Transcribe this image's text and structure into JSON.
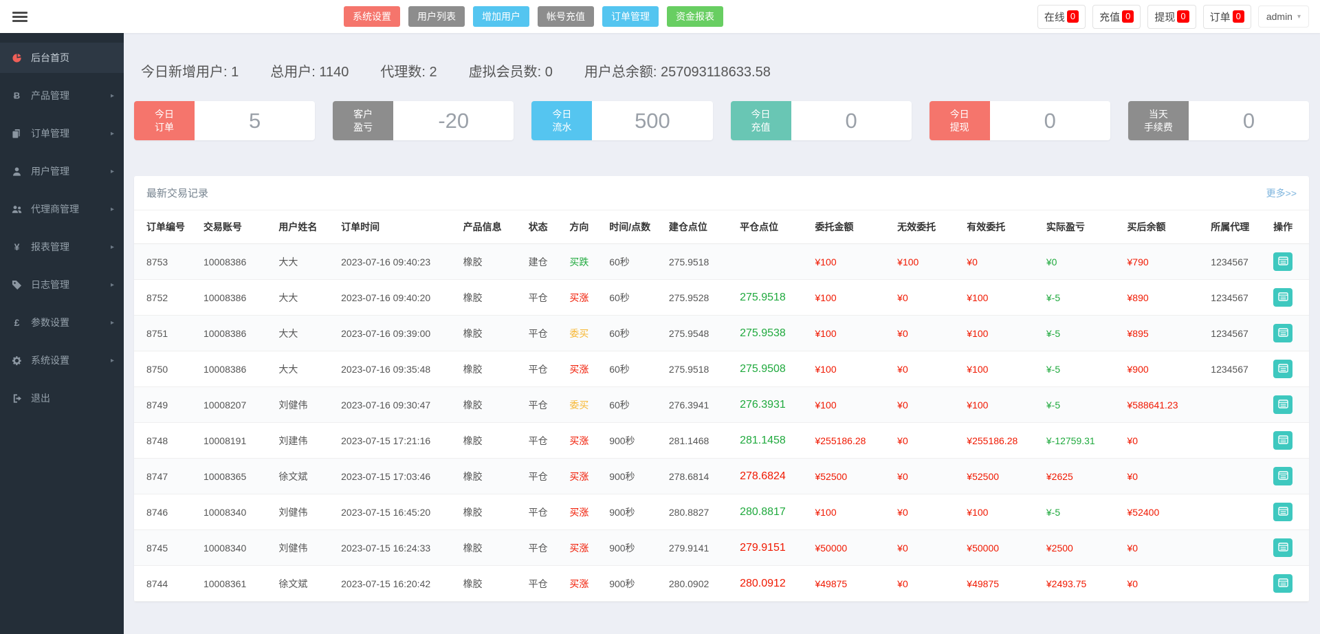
{
  "header": {
    "menu_buttons": [
      {
        "label": "系统设置",
        "color": "red"
      },
      {
        "label": "用户列表",
        "color": "gray"
      },
      {
        "label": "增加用户",
        "color": "blue"
      },
      {
        "label": "帐号充值",
        "color": "gray"
      },
      {
        "label": "订单管理",
        "color": "blue"
      },
      {
        "label": "资金报表",
        "color": "green"
      }
    ],
    "counters": [
      {
        "label": "在线",
        "count": "0"
      },
      {
        "label": "充值",
        "count": "0"
      },
      {
        "label": "提现",
        "count": "0"
      },
      {
        "label": "订单",
        "count": "0"
      }
    ],
    "user": {
      "name": "admin"
    }
  },
  "sidebar": {
    "items": [
      {
        "label": "后台首页",
        "icon": "dashboard-icon",
        "active": true,
        "arrow": false
      },
      {
        "label": "产品管理",
        "icon": "product-icon",
        "active": false,
        "arrow": true
      },
      {
        "label": "订单管理",
        "icon": "order-icon",
        "active": false,
        "arrow": true
      },
      {
        "label": "用户管理",
        "icon": "user-icon",
        "active": false,
        "arrow": true
      },
      {
        "label": "代理商管理",
        "icon": "agent-icon",
        "active": false,
        "arrow": true
      },
      {
        "label": "报表管理",
        "icon": "report-icon",
        "active": false,
        "arrow": true
      },
      {
        "label": "日志管理",
        "icon": "log-icon",
        "active": false,
        "arrow": true
      },
      {
        "label": "参数设置",
        "icon": "param-icon",
        "active": false,
        "arrow": true
      },
      {
        "label": "系统设置",
        "icon": "system-icon",
        "active": false,
        "arrow": true
      },
      {
        "label": "退出",
        "icon": "logout-icon",
        "active": false,
        "arrow": false
      }
    ]
  },
  "summary": [
    {
      "label": "今日新增用户",
      "value": "1"
    },
    {
      "label": "总用户",
      "value": "1140"
    },
    {
      "label": "代理数",
      "value": "2"
    },
    {
      "label": "虚拟会员数",
      "value": "0"
    },
    {
      "label": "用户总余额",
      "value": "257093118633.58"
    }
  ],
  "stat_cards": [
    {
      "line1": "今日",
      "line2": "订单",
      "color": "red",
      "value": "5"
    },
    {
      "line1": "客户",
      "line2": "盈亏",
      "color": "gray",
      "value": "-20"
    },
    {
      "line1": "今日",
      "line2": "流水",
      "color": "blue",
      "value": "500"
    },
    {
      "line1": "今日",
      "line2": "充值",
      "color": "teal",
      "value": "0"
    },
    {
      "line1": "今日",
      "line2": "提现",
      "color": "red",
      "value": "0"
    },
    {
      "line1": "当天",
      "line2": "手续费",
      "color": "gray",
      "value": "0"
    }
  ],
  "panel": {
    "title": "最新交易记录",
    "more_link": "更多>>",
    "table": {
      "columns": [
        "订单编号",
        "交易账号",
        "用户姓名",
        "订单时间",
        "产品信息",
        "状态",
        "方向",
        "时间/点数",
        "建仓点位",
        "平仓点位",
        "委托金额",
        "无效委托",
        "有效委托",
        "实际盈亏",
        "买后余额",
        "所属代理",
        "操作"
      ],
      "op_button_icon": "order-detail-icon",
      "rows": [
        [
          "8753",
          "10008386",
          "大大",
          "2023-07-16 09:40:23",
          "橡胶",
          "建仓",
          {
            "t": "买跌",
            "color": "green"
          },
          "60秒",
          "275.9518",
          {
            "t": "",
            "color": "green",
            "em": true
          },
          {
            "t": "¥100",
            "color": "red"
          },
          {
            "t": "¥100",
            "color": "red"
          },
          {
            "t": "¥0",
            "color": "red"
          },
          {
            "t": "¥0",
            "color": "green"
          },
          {
            "t": "¥790",
            "color": "red"
          },
          "1234567"
        ],
        [
          "8752",
          "10008386",
          "大大",
          "2023-07-16 09:40:20",
          "橡胶",
          "平仓",
          {
            "t": "买涨",
            "color": "red"
          },
          "60秒",
          "275.9528",
          {
            "t": "275.9518",
            "color": "green",
            "em": true
          },
          {
            "t": "¥100",
            "color": "red"
          },
          {
            "t": "¥0",
            "color": "red"
          },
          {
            "t": "¥100",
            "color": "red"
          },
          {
            "t": "¥-5",
            "color": "green"
          },
          {
            "t": "¥890",
            "color": "red"
          },
          "1234567"
        ],
        [
          "8751",
          "10008386",
          "大大",
          "2023-07-16 09:39:00",
          "橡胶",
          "平仓",
          {
            "t": "委买",
            "color": "orange"
          },
          "60秒",
          "275.9548",
          {
            "t": "275.9538",
            "color": "green",
            "em": true
          },
          {
            "t": "¥100",
            "color": "red"
          },
          {
            "t": "¥0",
            "color": "red"
          },
          {
            "t": "¥100",
            "color": "red"
          },
          {
            "t": "¥-5",
            "color": "green"
          },
          {
            "t": "¥895",
            "color": "red"
          },
          "1234567"
        ],
        [
          "8750",
          "10008386",
          "大大",
          "2023-07-16 09:35:48",
          "橡胶",
          "平仓",
          {
            "t": "买涨",
            "color": "red"
          },
          "60秒",
          "275.9518",
          {
            "t": "275.9508",
            "color": "green",
            "em": true
          },
          {
            "t": "¥100",
            "color": "red"
          },
          {
            "t": "¥0",
            "color": "red"
          },
          {
            "t": "¥100",
            "color": "red"
          },
          {
            "t": "¥-5",
            "color": "green"
          },
          {
            "t": "¥900",
            "color": "red"
          },
          "1234567"
        ],
        [
          "8749",
          "10008207",
          "刘健伟",
          "2023-07-16 09:30:47",
          "橡胶",
          "平仓",
          {
            "t": "委买",
            "color": "orange"
          },
          "60秒",
          "276.3941",
          {
            "t": "276.3931",
            "color": "green",
            "em": true
          },
          {
            "t": "¥100",
            "color": "red"
          },
          {
            "t": "¥0",
            "color": "red"
          },
          {
            "t": "¥100",
            "color": "red"
          },
          {
            "t": "¥-5",
            "color": "green"
          },
          {
            "t": "¥588641.23",
            "color": "red"
          },
          ""
        ],
        [
          "8748",
          "10008191",
          "刘建伟",
          "2023-07-15 17:21:16",
          "橡胶",
          "平仓",
          {
            "t": "买涨",
            "color": "red"
          },
          "900秒",
          "281.1468",
          {
            "t": "281.1458",
            "color": "green",
            "em": true
          },
          {
            "t": "¥255186.28",
            "color": "red"
          },
          {
            "t": "¥0",
            "color": "red"
          },
          {
            "t": "¥255186.28",
            "color": "red"
          },
          {
            "t": "¥-12759.31",
            "color": "green"
          },
          {
            "t": "¥0",
            "color": "red"
          },
          ""
        ],
        [
          "8747",
          "10008365",
          "徐文斌",
          "2023-07-15 17:03:46",
          "橡胶",
          "平仓",
          {
            "t": "买涨",
            "color": "red"
          },
          "900秒",
          "278.6814",
          {
            "t": "278.6824",
            "color": "red",
            "em": true
          },
          {
            "t": "¥52500",
            "color": "red"
          },
          {
            "t": "¥0",
            "color": "red"
          },
          {
            "t": "¥52500",
            "color": "red"
          },
          {
            "t": "¥2625",
            "color": "red"
          },
          {
            "t": "¥0",
            "color": "red"
          },
          ""
        ],
        [
          "8746",
          "10008340",
          "刘健伟",
          "2023-07-15 16:45:20",
          "橡胶",
          "平仓",
          {
            "t": "买涨",
            "color": "red"
          },
          "900秒",
          "280.8827",
          {
            "t": "280.8817",
            "color": "green",
            "em": true
          },
          {
            "t": "¥100",
            "color": "red"
          },
          {
            "t": "¥0",
            "color": "red"
          },
          {
            "t": "¥100",
            "color": "red"
          },
          {
            "t": "¥-5",
            "color": "green"
          },
          {
            "t": "¥52400",
            "color": "red"
          },
          ""
        ],
        [
          "8745",
          "10008340",
          "刘健伟",
          "2023-07-15 16:24:33",
          "橡胶",
          "平仓",
          {
            "t": "买涨",
            "color": "red"
          },
          "900秒",
          "279.9141",
          {
            "t": "279.9151",
            "color": "red",
            "em": true
          },
          {
            "t": "¥50000",
            "color": "red"
          },
          {
            "t": "¥0",
            "color": "red"
          },
          {
            "t": "¥50000",
            "color": "red"
          },
          {
            "t": "¥2500",
            "color": "red"
          },
          {
            "t": "¥0",
            "color": "red"
          },
          ""
        ],
        [
          "8744",
          "10008361",
          "徐文斌",
          "2023-07-15 16:20:42",
          "橡胶",
          "平仓",
          {
            "t": "买涨",
            "color": "red"
          },
          "900秒",
          "280.0902",
          {
            "t": "280.0912",
            "color": "red",
            "em": true
          },
          {
            "t": "¥49875",
            "color": "red"
          },
          {
            "t": "¥0",
            "color": "red"
          },
          {
            "t": "¥49875",
            "color": "red"
          },
          {
            "t": "¥2493.75",
            "color": "red"
          },
          {
            "t": "¥0",
            "color": "red"
          },
          ""
        ]
      ]
    }
  },
  "colors": {
    "button_red": "#f5756c",
    "button_gray": "#8d8d8d",
    "button_blue": "#54c5f0",
    "button_green": "#68ce62",
    "card_teal": "#69c6b4",
    "badge_red": "#ff0000",
    "op_button_teal": "#3ec8bf",
    "text_red": "#f01800",
    "text_green": "#1fa93d",
    "text_orange": "#f7b733",
    "sidebar_bg": "#242e38",
    "sidebar_active_icon": "#ef5f58",
    "more_link_blue": "#7db4dd",
    "page_bg": "#edeff5"
  }
}
